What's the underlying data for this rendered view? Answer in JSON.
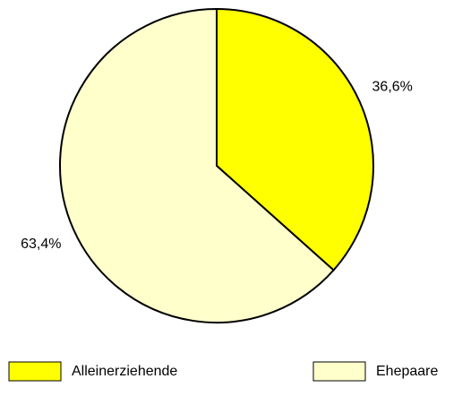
{
  "chart_data": {
    "type": "pie",
    "categories": [
      "Alleinerziehende",
      "Ehepaare"
    ],
    "values": [
      36.6,
      63.4
    ],
    "value_labels": [
      "36,6%",
      "63,4%"
    ],
    "colors": [
      "#ffff00",
      "#ffffcc"
    ]
  }
}
